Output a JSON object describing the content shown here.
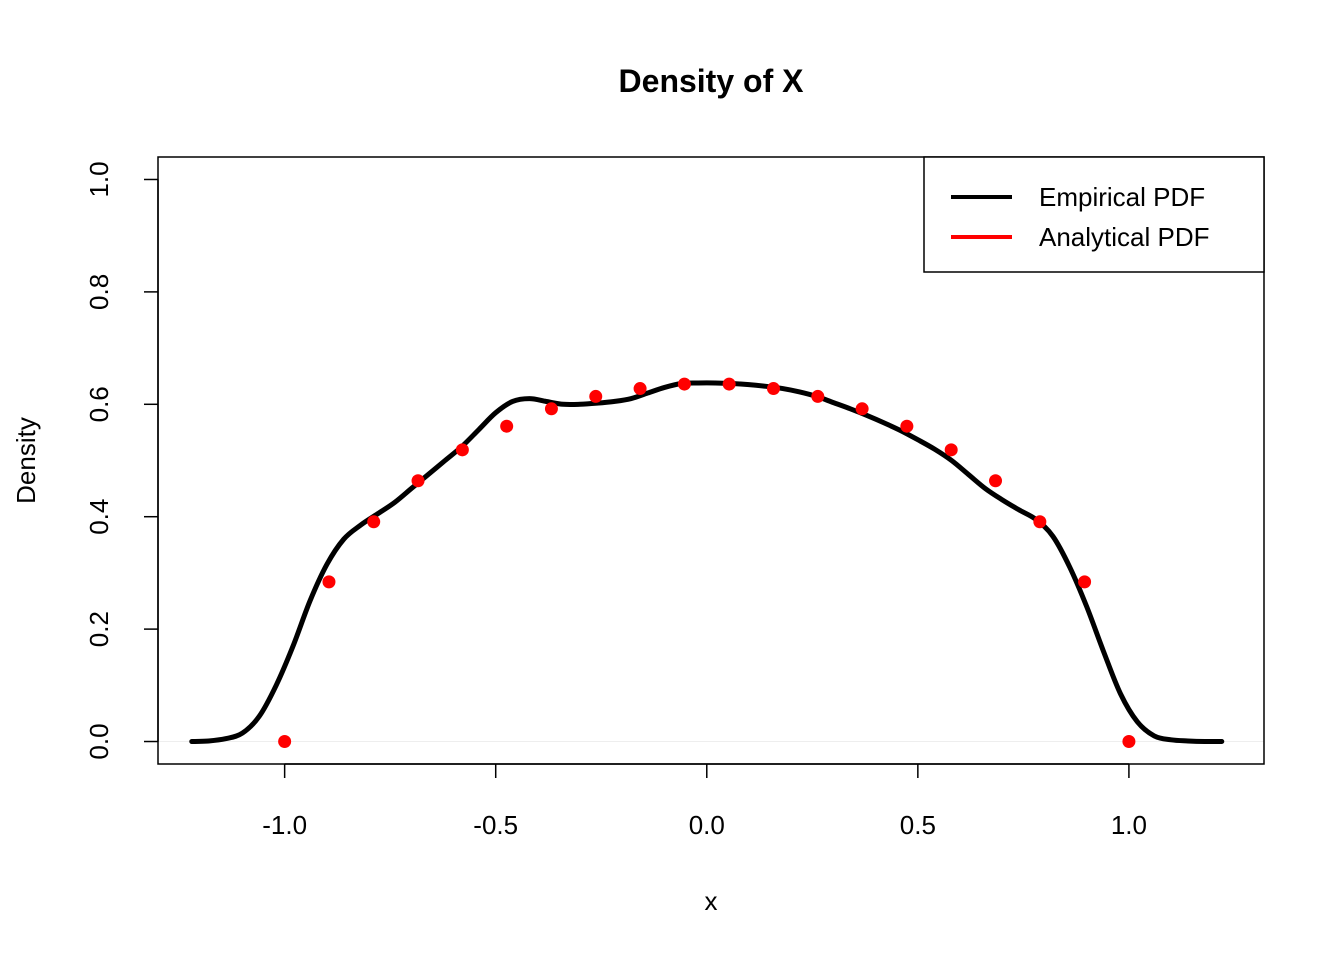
{
  "chart_data": {
    "type": "line",
    "title": "Density of X",
    "xlabel": "x",
    "ylabel": "Density",
    "xlim": [
      -1.3,
      1.32
    ],
    "ylim": [
      -0.04,
      1.04
    ],
    "x_ticks": [
      -1.0,
      -0.5,
      0.0,
      0.5,
      1.0
    ],
    "x_tick_labels": [
      "-1.0",
      "-0.5",
      "0.0",
      "0.5",
      "1.0"
    ],
    "y_ticks": [
      0.0,
      0.2,
      0.4,
      0.6,
      0.8,
      1.0
    ],
    "y_tick_labels": [
      "0.0",
      "0.2",
      "0.4",
      "0.6",
      "0.8",
      "1.0"
    ],
    "grid": false,
    "legend": {
      "position": "top-right",
      "entries": [
        {
          "label": "Empirical PDF",
          "color": "#000000"
        },
        {
          "label": "Analytical PDF",
          "color": "#ff0000"
        }
      ]
    },
    "series": [
      {
        "name": "Empirical PDF",
        "style": "line",
        "color": "#000000",
        "x": [
          -1.22,
          -1.18,
          -1.14,
          -1.1,
          -1.06,
          -1.02,
          -0.98,
          -0.94,
          -0.9,
          -0.86,
          -0.82,
          -0.78,
          -0.74,
          -0.7,
          -0.66,
          -0.62,
          -0.58,
          -0.54,
          -0.5,
          -0.46,
          -0.42,
          -0.38,
          -0.34,
          -0.3,
          -0.26,
          -0.22,
          -0.18,
          -0.14,
          -0.1,
          -0.06,
          -0.02,
          0.02,
          0.06,
          0.1,
          0.14,
          0.18,
          0.22,
          0.26,
          0.3,
          0.34,
          0.38,
          0.42,
          0.46,
          0.5,
          0.54,
          0.58,
          0.62,
          0.66,
          0.7,
          0.74,
          0.78,
          0.82,
          0.86,
          0.9,
          0.94,
          0.98,
          1.02,
          1.06,
          1.1,
          1.14,
          1.18,
          1.22
        ],
        "y": [
          0.0,
          0.001,
          0.005,
          0.015,
          0.045,
          0.1,
          0.17,
          0.25,
          0.315,
          0.36,
          0.385,
          0.405,
          0.425,
          0.45,
          0.475,
          0.5,
          0.525,
          0.555,
          0.585,
          0.605,
          0.61,
          0.605,
          0.6,
          0.6,
          0.602,
          0.605,
          0.61,
          0.62,
          0.63,
          0.637,
          0.638,
          0.638,
          0.637,
          0.635,
          0.632,
          0.628,
          0.622,
          0.614,
          0.603,
          0.592,
          0.58,
          0.567,
          0.553,
          0.537,
          0.52,
          0.5,
          0.475,
          0.45,
          0.43,
          0.412,
          0.395,
          0.365,
          0.31,
          0.24,
          0.16,
          0.085,
          0.035,
          0.01,
          0.003,
          0.001,
          0.0,
          0.0
        ]
      },
      {
        "name": "Analytical PDF",
        "style": "points",
        "color": "#ff0000",
        "x": [
          -1.0,
          -0.895,
          -0.789,
          -0.684,
          -0.579,
          -0.474,
          -0.368,
          -0.263,
          -0.158,
          -0.053,
          0.053,
          0.158,
          0.263,
          0.368,
          0.474,
          0.579,
          0.684,
          0.789,
          0.895,
          1.0
        ],
        "y": [
          0.0,
          0.284,
          0.391,
          0.464,
          0.519,
          0.561,
          0.592,
          0.614,
          0.628,
          0.636,
          0.636,
          0.628,
          0.614,
          0.592,
          0.561,
          0.519,
          0.464,
          0.391,
          0.284,
          0.0
        ]
      }
    ]
  }
}
